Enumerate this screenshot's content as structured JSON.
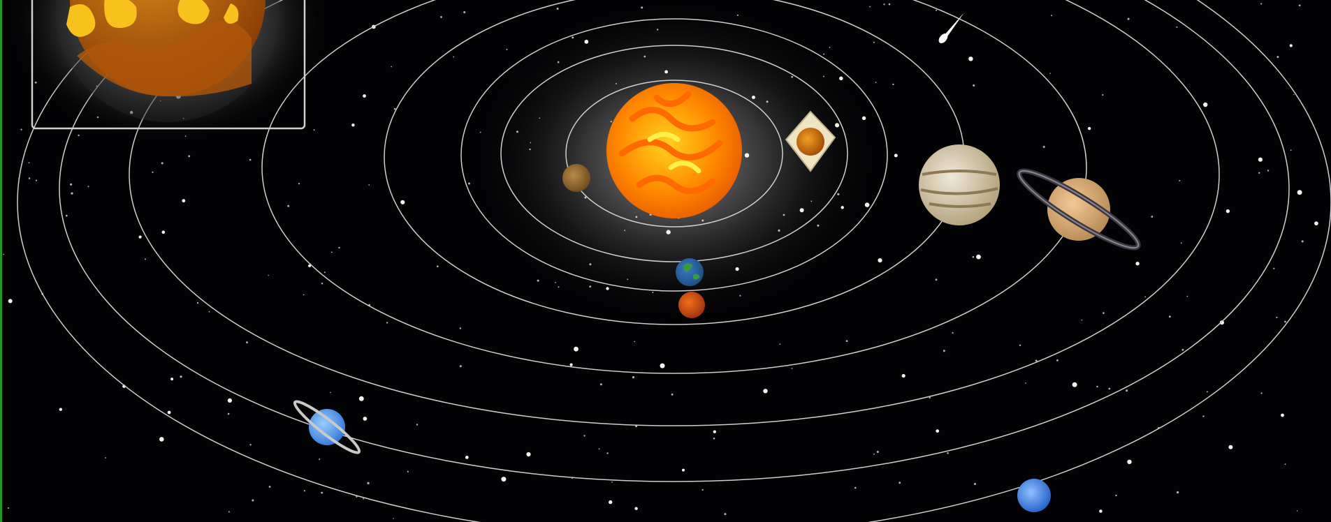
{
  "scene": {
    "kind": "solar-system-orrery",
    "background_color": "#030305",
    "orbit_color": "#cfcfcf",
    "star_color": "#ffffff",
    "left_edge_color": "#1f9a25"
  },
  "sun": {
    "name": "sun",
    "colors": [
      "#ffd21f",
      "#ff8a00",
      "#e85a00"
    ]
  },
  "planets": [
    {
      "name": "mercury",
      "orbit": 1,
      "colors": [
        "#b98a45",
        "#6b4a1f"
      ]
    },
    {
      "name": "venus",
      "orbit": 2,
      "colors": [
        "#f0a020",
        "#a24708"
      ],
      "selected": true
    },
    {
      "name": "earth",
      "orbit": 3,
      "colors": [
        "#3a78c4",
        "#2b8a3e"
      ]
    },
    {
      "name": "mars",
      "orbit": 4,
      "colors": [
        "#f07018",
        "#a03010"
      ]
    },
    {
      "name": "jupiter",
      "orbit": 5,
      "colors": [
        "#efe9d8",
        "#b39f7a"
      ]
    },
    {
      "name": "saturn",
      "orbit": 6,
      "colors": [
        "#f2c894",
        "#b78a55"
      ],
      "rings": true
    },
    {
      "name": "uranus",
      "orbit": 7,
      "colors": [
        "#7dbbff",
        "#2f78d8"
      ],
      "rings": true
    },
    {
      "name": "neptune",
      "orbit": 8,
      "colors": [
        "#6aa9ff",
        "#245fc8"
      ]
    }
  ],
  "zoom_panel": {
    "shows": "venus",
    "colors": [
      "#f7c21e",
      "#c8650a",
      "#8a3d05"
    ]
  },
  "comet": {
    "name": "comet",
    "color": "#ffffff"
  }
}
